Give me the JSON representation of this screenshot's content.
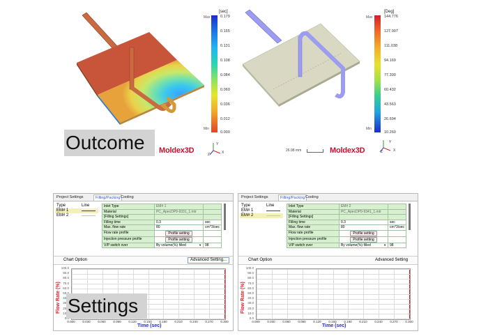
{
  "left_sim": {
    "unit": "[sec]",
    "max_tag": "Max",
    "min_tag": "Min",
    "ticks": [
      "0.179",
      "0.155",
      "0.131",
      "0.108",
      "0.084",
      "0.060",
      "0.036",
      "0.012",
      "0.000"
    ],
    "logo": "Moldex3D",
    "axis": {
      "y": "Y",
      "x": "X",
      "z": "Z"
    }
  },
  "right_sim": {
    "unit": "[Deg]",
    "ticks": [
      "144.776",
      "127.907",
      "111.038",
      "94.169",
      "77.300",
      "60.432",
      "43.563",
      "26.694",
      "10.260"
    ],
    "scale_text": "26.98 mm",
    "logo": "Moldex3D",
    "axis": {
      "y": "Y",
      "x": "X",
      "z": "Z"
    }
  },
  "captions": {
    "outcome": "Outcome",
    "settings": "Settings"
  },
  "colors": {
    "hot": "#c8553a",
    "plate_right": "#d9d9c3",
    "runner_left": "#c96b40",
    "runner_right": "#9c9cf0",
    "title_x": "#2929c9",
    "title_y": "#d1232a"
  },
  "settings_left": {
    "tabs": [
      "Project Settings",
      "Filling/Packing",
      "Cooling"
    ],
    "list_headers": {
      "type": "Type",
      "line": "Line"
    },
    "list_items": [
      "EM# 1",
      "EM# 2"
    ],
    "rows": [
      {
        "label": "Inlet Type",
        "value": "EM# 1",
        "unit": ""
      },
      {
        "label": "Material",
        "value": "PC_ApecDP9-9331_1.mtr",
        "unit": ""
      },
      {
        "label": "[Filling Settings]",
        "value": "",
        "unit": ""
      },
      {
        "label": "Filling time",
        "value": "0.3",
        "unit": "sec"
      },
      {
        "label": "Max. flow rate",
        "value": "80",
        "unit": "cm^3/sec"
      },
      {
        "label": "Flow rate profile",
        "value": "Profile setting",
        "unit": ""
      },
      {
        "label": "Injection pressure profile",
        "value": "Profile setting",
        "unit": ""
      },
      {
        "label": "V/P switch over",
        "value": "By volume(%) filled",
        "unit": "98"
      }
    ],
    "chart_option": "Chart Option",
    "advanced": "Advanced Setting..."
  },
  "settings_right": {
    "tabs": [
      "Project Settings",
      "Filling/Packing",
      "Cooling"
    ],
    "list_headers": {
      "type": "Type",
      "line": "Line"
    },
    "list_items": [
      "EM# 1",
      "EM# 2"
    ],
    "rows": [
      {
        "label": "Inlet Type",
        "value": "EM# 2",
        "unit": ""
      },
      {
        "label": "Material",
        "value": "PC_ApecDP9-9341_1.mtr",
        "unit": ""
      },
      {
        "label": "[Filling Settings]",
        "value": "",
        "unit": ""
      },
      {
        "label": "Filling time",
        "value": "0.3",
        "unit": "sec"
      },
      {
        "label": "Max. flow rate",
        "value": "80",
        "unit": "cm^3/sec"
      },
      {
        "label": "Flow rate profile",
        "value": "Profile setting",
        "unit": ""
      },
      {
        "label": "Injection pressure profile",
        "value": "Profile setting",
        "unit": ""
      },
      {
        "label": "V/P switch over",
        "value": "By volume(%) filled",
        "unit": "98"
      }
    ],
    "chart_option": "Chart Option",
    "advanced": "Advanced Setting"
  },
  "chart_data": [
    {
      "type": "line",
      "xlabel": "Time (sec)",
      "ylabel": "Flow Rate (%)",
      "x_ticks": [
        "0.000",
        "0.030",
        "0.060",
        "0.090",
        "0.120",
        "0.150",
        "0.180",
        "0.210",
        "0.240",
        "0.270",
        "0.300"
      ],
      "y_ticks": [
        "100.0",
        "90.0",
        "80.0",
        "70.0",
        "60.0",
        "50.0",
        "40.0",
        "30.0",
        "20.0",
        "10.0",
        "0.0"
      ],
      "xlim": [
        0,
        0.3
      ],
      "ylim": [
        0,
        100
      ],
      "grid": true
    },
    {
      "type": "line",
      "xlabel": "Time (sec)",
      "ylabel": "Flow Rate (%)",
      "x_ticks": [
        "0.000",
        "0.030",
        "0.060",
        "0.090",
        "0.120",
        "0.150",
        "0.180",
        "0.210",
        "0.240",
        "0.270",
        "0.300"
      ],
      "y_ticks": [
        "100.0",
        "90.0",
        "80.0",
        "70.0",
        "60.0",
        "50.0",
        "40.0",
        "30.0",
        "20.0",
        "10.0",
        "0.0"
      ],
      "xlim": [
        0,
        0.3
      ],
      "ylim": [
        0,
        100
      ],
      "grid": true
    }
  ]
}
